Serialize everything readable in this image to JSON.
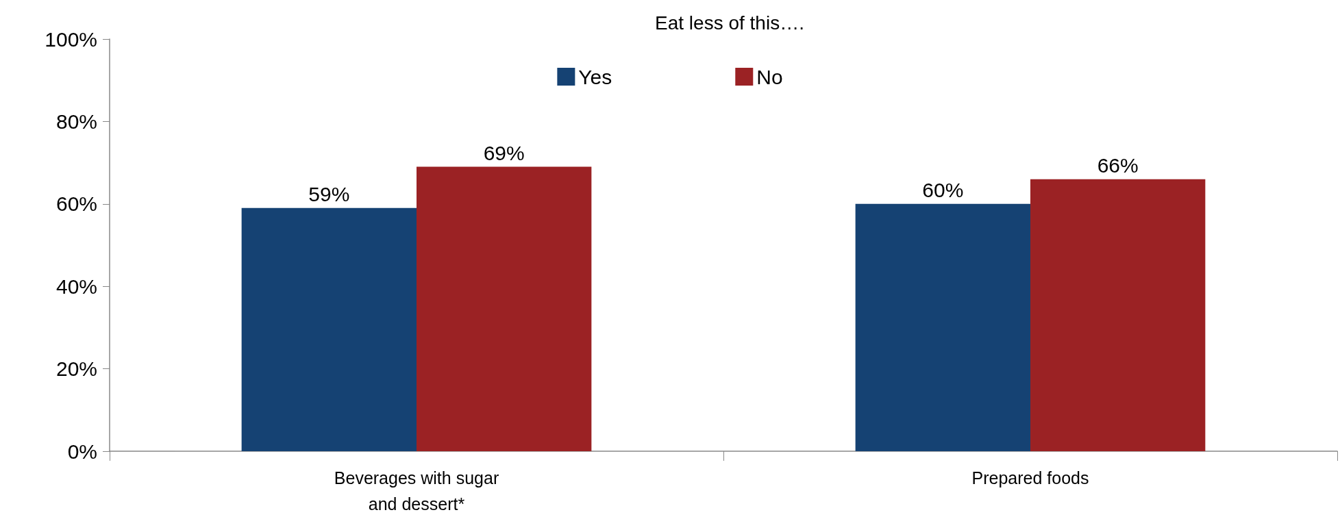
{
  "chart_data": {
    "type": "bar",
    "title": "Eat less of this….",
    "categories": [
      "Beverages with sugar\nand dessert*",
      "Prepared foods"
    ],
    "series": [
      {
        "name": "Yes",
        "color": "#154273",
        "values": [
          59,
          60
        ],
        "value_labels": [
          "59%",
          "60%"
        ]
      },
      {
        "name": "No",
        "color": "#9b2224",
        "values": [
          69,
          66
        ],
        "value_labels": [
          "69%",
          "66%"
        ]
      }
    ],
    "ylim": [
      0,
      100
    ],
    "yticks": [
      {
        "value": 0,
        "label": "0%"
      },
      {
        "value": 20,
        "label": "20%"
      },
      {
        "value": 40,
        "label": "40%"
      },
      {
        "value": 60,
        "label": "60%"
      },
      {
        "value": 80,
        "label": "80%"
      },
      {
        "value": 100,
        "label": "100%"
      }
    ],
    "grid": false,
    "legend": "top"
  }
}
